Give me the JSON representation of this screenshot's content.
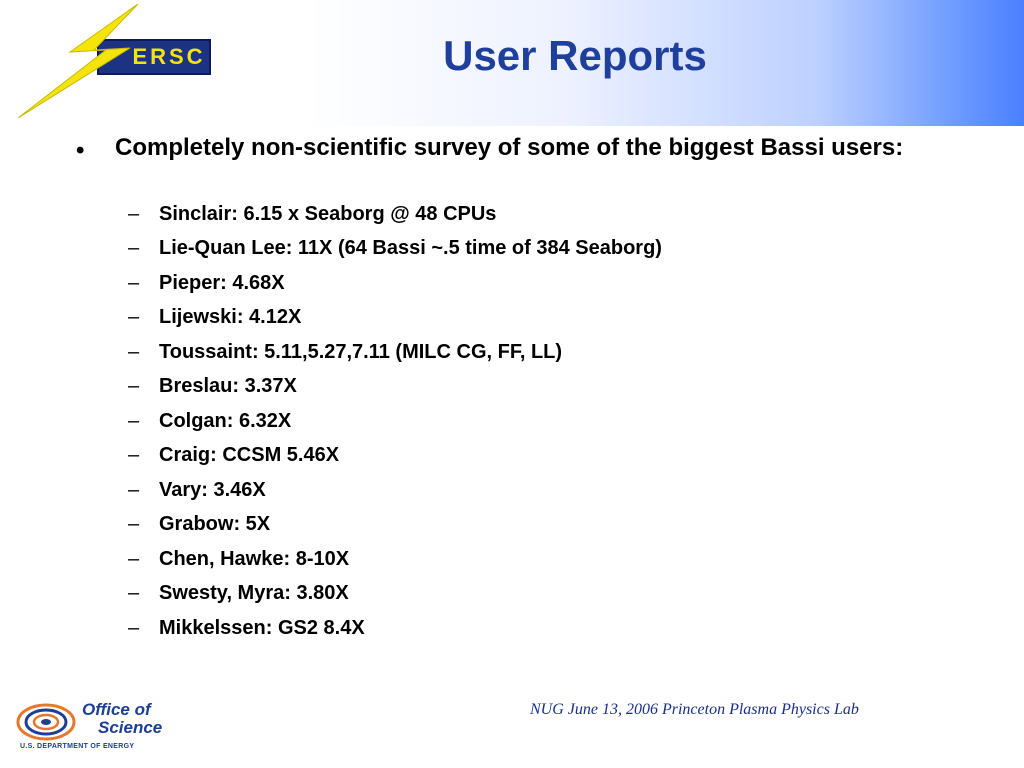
{
  "slide": {
    "title": "User Reports",
    "logo_text": "ERSC",
    "bullet": {
      "marker": "•",
      "text": "Completely non-scientific survey of some of the biggest Bassi users:",
      "sub_marker": "–",
      "sub_items": [
        "Sinclair: 6.15 x Seaborg @ 48 CPUs",
        "Lie-Quan Lee: 11X (64 Bassi ~.5 time of 384 Seaborg)",
        "Pieper: 4.68X",
        "Lijewski: 4.12X",
        "Toussaint: 5.11,5.27,7.11 (MILC CG, FF, LL)",
        "Breslau: 3.37X",
        "Colgan: 6.32X",
        "Craig: CCSM 5.46X",
        "Vary: 3.46X",
        "Grabow: 5X",
        "Chen, Hawke: 8-10X",
        "Swesty, Myra: 3.80X",
        "Mikkelssen: GS2 8.4X"
      ]
    },
    "footer": {
      "text": "NUG June 13, 2006 Princeton Plasma Physics Lab",
      "logo_line1": "Office of",
      "logo_line2": "Science",
      "logo_line3": "U.S. DEPARTMENT OF ENERGY"
    }
  },
  "colors": {
    "title": "#1f3f9d",
    "header_gradient_end": "#4a7fff",
    "logo_box": "#1c3383",
    "lightning": "#f4e40a",
    "footer_text": "#1a2f8a"
  },
  "icons": {
    "nersc_logo": "lightning-bolt-logo",
    "doe_logo": "doe-swirl-logo"
  }
}
